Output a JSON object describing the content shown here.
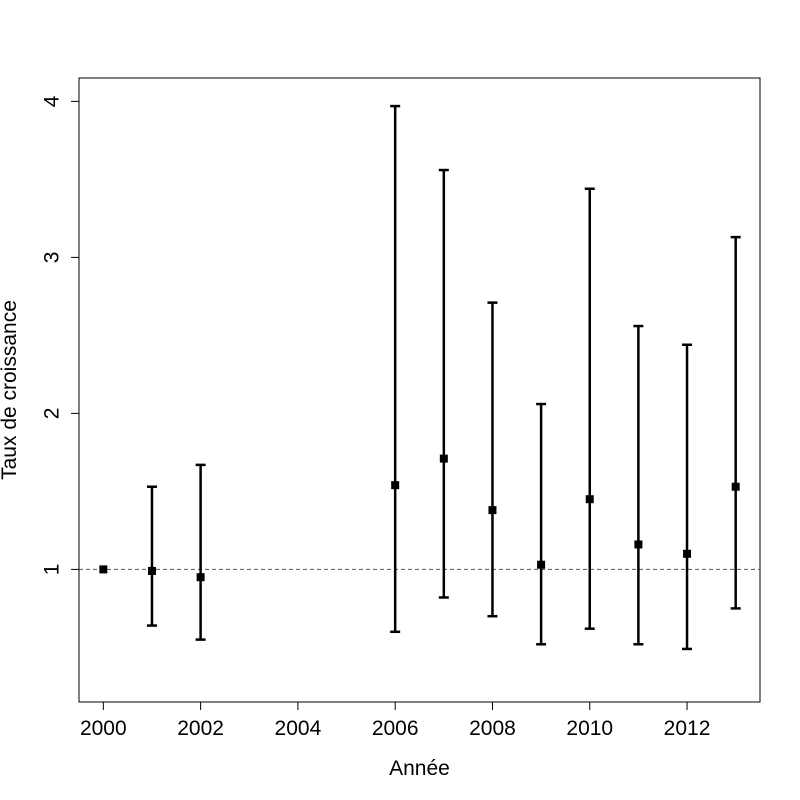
{
  "chart_data": {
    "type": "scatter",
    "title": "",
    "xlabel": "Année",
    "ylabel": "Taux de croissance",
    "xlim": [
      1999.5,
      2013.5
    ],
    "ylim": [
      0.15,
      4.15
    ],
    "x_ticks": [
      2000,
      2002,
      2004,
      2006,
      2008,
      2010,
      2012
    ],
    "y_ticks": [
      1,
      2,
      3,
      4
    ],
    "x_tick_labels": [
      "2000",
      "2002",
      "2004",
      "2006",
      "2008",
      "2010",
      "2012"
    ],
    "y_tick_labels": [
      "1",
      "2",
      "3",
      "4"
    ],
    "reference_line": {
      "y": 1,
      "style": "dashed"
    },
    "grid": false,
    "legend": "none",
    "points": [
      {
        "x": 2000,
        "y": 1.0,
        "lower": 1.0,
        "upper": 1.0
      },
      {
        "x": 2001,
        "y": 0.99,
        "lower": 0.64,
        "upper": 1.53
      },
      {
        "x": 2002,
        "y": 0.95,
        "lower": 0.55,
        "upper": 1.67
      },
      {
        "x": 2006,
        "y": 1.54,
        "lower": 0.6,
        "upper": 3.97
      },
      {
        "x": 2007,
        "y": 1.71,
        "lower": 0.82,
        "upper": 3.56
      },
      {
        "x": 2008,
        "y": 1.38,
        "lower": 0.7,
        "upper": 2.71
      },
      {
        "x": 2009,
        "y": 1.03,
        "lower": 0.52,
        "upper": 2.06
      },
      {
        "x": 2010,
        "y": 1.45,
        "lower": 0.62,
        "upper": 3.44
      },
      {
        "x": 2011,
        "y": 1.16,
        "lower": 0.52,
        "upper": 2.56
      },
      {
        "x": 2012,
        "y": 1.1,
        "lower": 0.49,
        "upper": 2.44
      },
      {
        "x": 2013,
        "y": 1.53,
        "lower": 0.75,
        "upper": 3.13
      }
    ],
    "colors": {
      "points": "#000000",
      "reference_line": "#555555"
    }
  }
}
